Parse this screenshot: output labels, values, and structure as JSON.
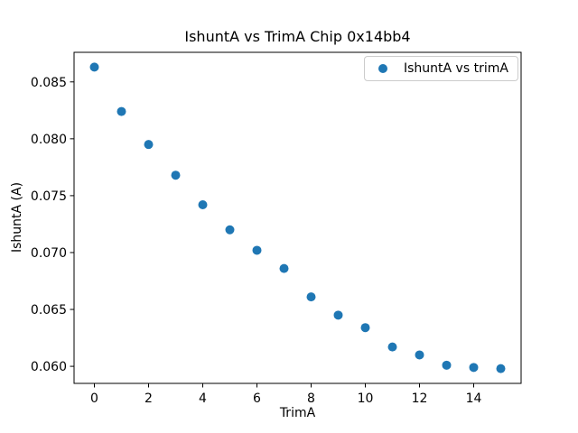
{
  "figure": {
    "background": "#ffffff",
    "frame_color": "#000000",
    "text_color": "#000000"
  },
  "legend": {
    "label": "IshuntA vs trimA",
    "marker_color": "#1f77b4",
    "border_color": "#cccccc"
  },
  "chart_data": {
    "type": "scatter",
    "title": "IshuntA vs TrimA Chip 0x14bb4",
    "xlabel": "TrimA",
    "ylabel": "IshuntA (A)",
    "legend_entries": [
      "IshuntA vs trimA"
    ],
    "legend_position": "upper right",
    "grid": false,
    "marker_color": "#1f77b4",
    "x": [
      0,
      1,
      2,
      3,
      4,
      5,
      6,
      7,
      8,
      9,
      10,
      11,
      12,
      13,
      14,
      15
    ],
    "y": [
      0.0863,
      0.0824,
      0.0795,
      0.0768,
      0.0742,
      0.072,
      0.0702,
      0.0686,
      0.0661,
      0.0645,
      0.0634,
      0.0617,
      0.061,
      0.0601,
      0.0599,
      0.0598
    ],
    "xlim": [
      -0.75,
      15.75
    ],
    "ylim": [
      0.0585,
      0.0876
    ],
    "x_ticks": [
      0,
      2,
      4,
      6,
      8,
      10,
      12,
      14
    ],
    "x_tick_labels": [
      "0",
      "2",
      "4",
      "6",
      "8",
      "10",
      "12",
      "14"
    ],
    "y_ticks": [
      0.06,
      0.065,
      0.07,
      0.075,
      0.08,
      0.085
    ],
    "y_tick_labels": [
      "0.060",
      "0.065",
      "0.070",
      "0.075",
      "0.080",
      "0.085"
    ]
  }
}
